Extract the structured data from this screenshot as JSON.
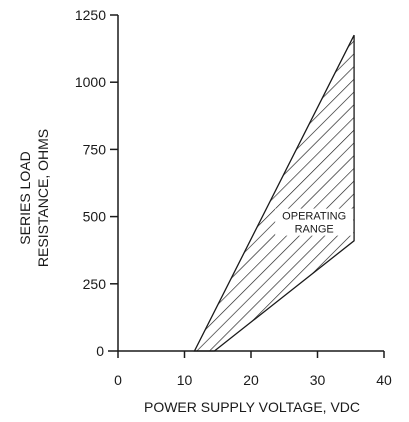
{
  "chart_data": {
    "type": "area",
    "title": "",
    "xlabel": "POWER SUPPLY VOLTAGE, VDC",
    "ylabel_line1": "SERIES LOAD",
    "ylabel_line2": "RESISTANCE, OHMS",
    "xlim": [
      0,
      40
    ],
    "ylim": [
      0,
      1250
    ],
    "x_ticks": [
      0,
      10,
      20,
      30,
      40
    ],
    "y_ticks": [
      0,
      250,
      500,
      750,
      1000,
      1250
    ],
    "x_tick_labels": [
      "0",
      "10",
      "20",
      "30",
      "40"
    ],
    "y_tick_labels": [
      "0",
      "250",
      "500",
      "750",
      "1000",
      "1250"
    ],
    "grid": false,
    "legend": "none",
    "fill": "hatched",
    "region_name": "OPERATING RANGE",
    "region": [
      {
        "x": 11.5,
        "y": 0
      },
      {
        "x": 14.5,
        "y": 0
      },
      {
        "x": 35.5,
        "y": 410
      },
      {
        "x": 35.5,
        "y": 1175
      }
    ],
    "annotation_line1": "OPERATING",
    "annotation_line2": "RANGE",
    "annotation_x": 29.5,
    "annotation_y": 485
  }
}
